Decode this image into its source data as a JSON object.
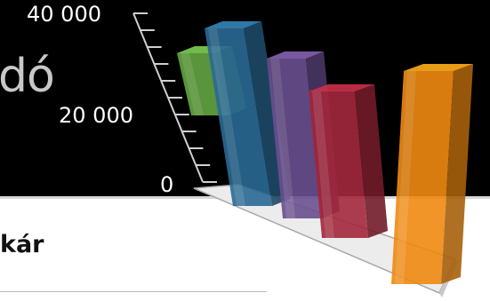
{
  "slide": {
    "title_fragment": "dó",
    "heading_fragment": "kár"
  },
  "colors": {
    "background_top": "#000000",
    "background_bottom": "#ffffff",
    "green": "#5e9e3e",
    "blue": "#2b6a94",
    "purple": "#6a4f8f",
    "red": "#a3273c",
    "orange": "#f08a12"
  },
  "chart_data": {
    "type": "bar",
    "categories": [
      "",
      "",
      "",
      "",
      ""
    ],
    "values": [
      16000,
      38000,
      33000,
      28000,
      35000
    ],
    "ylim": [
      0,
      40000
    ],
    "yticks": [
      "0",
      "20 000",
      "40 000"
    ],
    "title": "",
    "xlabel": "",
    "ylabel": ""
  }
}
